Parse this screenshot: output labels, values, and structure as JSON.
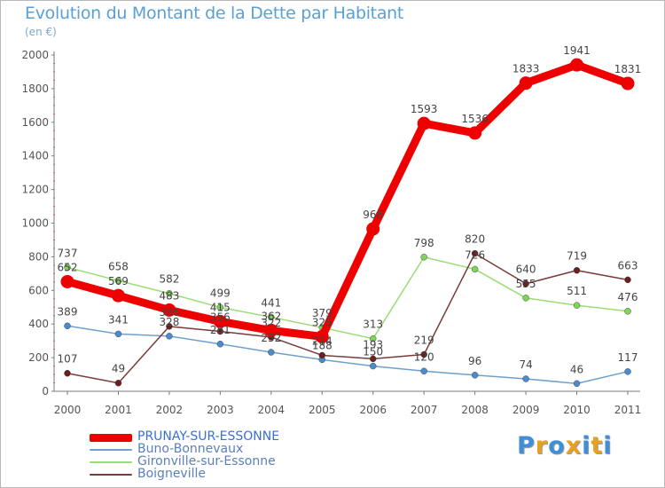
{
  "title": "Evolution du Montant de la Dette par Habitant",
  "subtitle": "(en €)",
  "brand": {
    "letters": [
      "P",
      "r",
      "o",
      "x",
      "i",
      "t",
      "i"
    ],
    "colors": [
      "#3f8fd8",
      "#e8a020",
      "#3f8fd8",
      "#e8a020",
      "#3f8fd8",
      "#e8a020",
      "#3f8fd8"
    ]
  },
  "chart_data": {
    "type": "line",
    "title": "Evolution du Montant de la Dette par Habitant",
    "subtitle": "(en €)",
    "x": [
      "2000",
      "2001",
      "2002",
      "2003",
      "2004",
      "2005",
      "2006",
      "2007",
      "2008",
      "2009",
      "2010",
      "2011"
    ],
    "ylim": [
      0,
      2000
    ],
    "yticks": [
      "0",
      "200",
      "400",
      "600",
      "800",
      "1000",
      "1200",
      "1400",
      "1600",
      "1800",
      "2000"
    ],
    "ytick_values": [
      0,
      200,
      400,
      600,
      800,
      1000,
      1200,
      1400,
      1600,
      1800,
      2000
    ],
    "grid": false,
    "legend_position": "bottom-left",
    "series": [
      {
        "name": "Buno-Bonnevaux",
        "color": "#6f9fcc",
        "marker": "#4a8bd0",
        "label_color": "#444444",
        "emphasis": "normal",
        "values": [
          389,
          341,
          328,
          281,
          232,
          188,
          150,
          120,
          96,
          74,
          46,
          117
        ],
        "labels": [
          "389",
          "341",
          "328",
          "281",
          "232",
          "188",
          "150",
          "120",
          "96",
          "74",
          "46",
          "117"
        ]
      },
      {
        "name": "Gironville-sur-Essonne",
        "color": "#99dd77",
        "marker": "#7fd45a",
        "label_color": "#444444",
        "emphasis": "normal",
        "values": [
          737,
          658,
          582,
          499,
          441,
          379,
          313,
          798,
          726,
          555,
          511,
          476
        ],
        "labels": [
          "737",
          "658",
          "582",
          "499",
          "441",
          "379",
          "313",
          "798",
          "726",
          "555",
          "511",
          "476"
        ]
      },
      {
        "name": "Boigneville",
        "color": "#7a3b3b",
        "marker": "#6a1e1e",
        "label_color": "#444444",
        "emphasis": "normal",
        "values": [
          107,
          49,
          386,
          356,
          322,
          214,
          193,
          219,
          820,
          640,
          719,
          663
        ],
        "labels": [
          "107",
          "49",
          "386",
          "356",
          "322",
          "214",
          "193",
          "219",
          "820",
          "640",
          "719",
          "663"
        ]
      },
      {
        "name": "PRUNAY-SUR-ESSONNE",
        "color": "#ee0000",
        "marker": "#ee0000",
        "label_color": "#444444",
        "emphasis": "bold",
        "values": [
          652,
          569,
          483,
          415,
          362,
          325,
          966,
          1593,
          1536,
          1833,
          1941,
          1831
        ],
        "labels": [
          "652",
          "569",
          "483",
          "415",
          "362",
          "325",
          "966",
          "1593",
          "1536",
          "1833",
          "1941",
          "1831"
        ]
      }
    ],
    "legend": [
      {
        "name": "PRUNAY-SUR-ESSONNE",
        "color": "#ee0000",
        "emphasis": "bold"
      },
      {
        "name": "Buno-Bonnevaux",
        "color": "#6f9fcc",
        "emphasis": "normal"
      },
      {
        "name": "Gironville-sur-Essonne",
        "color": "#99dd77",
        "emphasis": "normal"
      },
      {
        "name": "Boigneville",
        "color": "#7a3b3b",
        "emphasis": "normal"
      }
    ]
  }
}
